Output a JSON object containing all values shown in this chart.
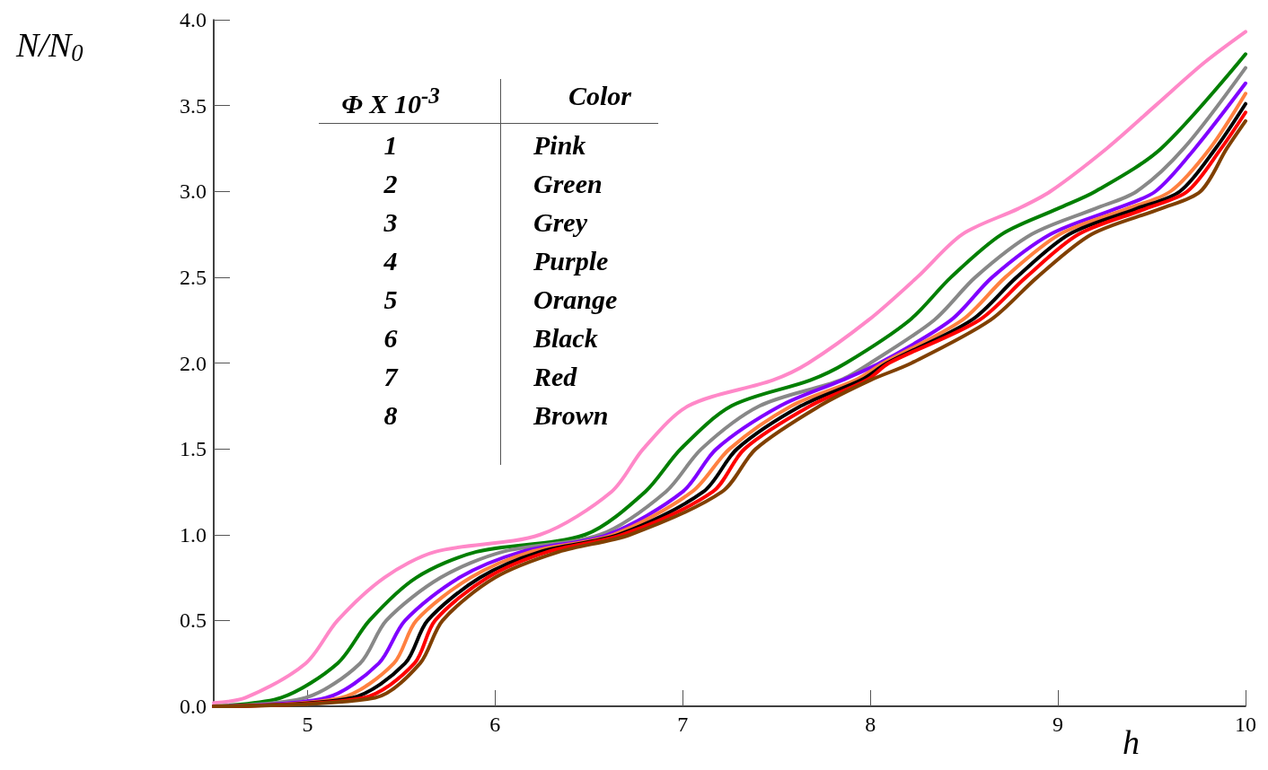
{
  "chart_data": {
    "type": "line",
    "xlabel": "h",
    "ylabel": "N/N$_{0}$",
    "xlim": [
      4.5,
      10
    ],
    "xticks": [
      5,
      6,
      7,
      8,
      9,
      10
    ],
    "ylim": [
      0,
      4
    ],
    "yticks": [
      {
        "value": 0,
        "label": "0.0"
      },
      {
        "value": 0.5,
        "label": "0.5"
      },
      {
        "value": 1,
        "label": "1.0"
      },
      {
        "value": 1.5,
        "label": "1.5"
      },
      {
        "value": 2,
        "label": "2.0"
      },
      {
        "value": 2.5,
        "label": "2.5"
      },
      {
        "value": 3,
        "label": "3.0"
      },
      {
        "value": 3.5,
        "label": "3.5"
      },
      {
        "value": 4,
        "label": "4.0"
      }
    ],
    "grid": false,
    "marker": "none",
    "line_style": "solid",
    "annotations": [
      "Φ X 10$^{-3}$",
      "Color",
      "1",
      "Pink",
      "2",
      "Green",
      "3",
      "Grey",
      "4",
      "Purple",
      "5",
      "Orange",
      "6",
      "Black",
      "7",
      "Red",
      "8",
      "Brown"
    ],
    "series": [
      {
        "color": "#ff88c8",
        "x": [
          4.5,
          4.67,
          4.99,
          5.16,
          5.41,
          5.68,
          6.24,
          6.62,
          6.79,
          7.03,
          7.48,
          7.67,
          7.99,
          8.25,
          8.49,
          8.79,
          8.96,
          9.26,
          9.52,
          9.78,
          10
        ],
        "values": [
          0.02,
          0.05,
          0.25,
          0.5,
          0.75,
          0.9,
          1.0,
          1.25,
          1.5,
          1.75,
          1.9,
          2.0,
          2.25,
          2.5,
          2.75,
          2.9,
          3.0,
          3.25,
          3.5,
          3.75,
          3.93
        ]
      },
      {
        "color": "#007f00",
        "x": [
          4.5,
          4.86,
          5.16,
          5.33,
          5.58,
          5.9,
          6.48,
          6.8,
          6.99,
          7.26,
          7.68,
          7.87,
          8.21,
          8.43,
          8.7,
          9.0,
          9.2,
          9.55,
          10
        ],
        "values": [
          0,
          0.05,
          0.25,
          0.5,
          0.75,
          0.9,
          1.0,
          1.25,
          1.5,
          1.75,
          1.9,
          2.0,
          2.25,
          2.5,
          2.75,
          2.9,
          3.0,
          3.25,
          3.8
        ]
      },
      {
        "color": "#888888",
        "x": [
          4.5,
          4.99,
          5.28,
          5.42,
          5.71,
          6.04,
          6.56,
          6.91,
          7.1,
          7.41,
          7.84,
          8.0,
          8.34,
          8.56,
          8.86,
          9.2,
          9.42,
          9.67,
          10
        ],
        "values": [
          0,
          0.05,
          0.25,
          0.5,
          0.75,
          0.9,
          1.0,
          1.25,
          1.5,
          1.75,
          1.9,
          2.0,
          2.25,
          2.5,
          2.75,
          2.9,
          3.0,
          3.25,
          3.72
        ]
      },
      {
        "color": "#8000ff",
        "x": [
          4.5,
          5.1,
          5.38,
          5.52,
          5.81,
          6.14,
          6.6,
          7.0,
          7.18,
          7.52,
          7.85,
          8.05,
          8.43,
          8.65,
          8.96,
          9.31,
          9.52,
          9.73,
          10
        ],
        "values": [
          0,
          0.05,
          0.25,
          0.5,
          0.75,
          0.9,
          1.0,
          1.25,
          1.5,
          1.75,
          1.9,
          2.0,
          2.25,
          2.5,
          2.75,
          2.9,
          3.0,
          3.25,
          3.63
        ]
      },
      {
        "color": "#ff8040",
        "x": [
          4.5,
          5.18,
          5.46,
          5.58,
          5.87,
          6.19,
          6.63,
          7.05,
          7.25,
          7.58,
          7.92,
          8.07,
          8.49,
          8.72,
          9.01,
          9.37,
          9.6,
          9.81,
          10
        ],
        "values": [
          0,
          0.05,
          0.25,
          0.5,
          0.75,
          0.9,
          1.0,
          1.25,
          1.5,
          1.75,
          1.9,
          2.0,
          2.25,
          2.5,
          2.75,
          2.9,
          3.0,
          3.25,
          3.57
        ]
      },
      {
        "color": "#000000",
        "x": [
          4.5,
          5.24,
          5.52,
          5.64,
          5.92,
          6.24,
          6.66,
          7.11,
          7.29,
          7.63,
          7.95,
          8.09,
          8.54,
          8.78,
          9.06,
          9.42,
          9.65,
          9.84,
          10
        ],
        "values": [
          0,
          0.05,
          0.25,
          0.5,
          0.75,
          0.9,
          1.0,
          1.25,
          1.5,
          1.75,
          1.9,
          2.0,
          2.25,
          2.5,
          2.75,
          2.9,
          3.0,
          3.25,
          3.51
        ]
      },
      {
        "color": "#ff0000",
        "x": [
          4.5,
          5.3,
          5.57,
          5.68,
          5.96,
          6.28,
          6.68,
          7.16,
          7.33,
          7.68,
          7.98,
          8.1,
          8.58,
          8.83,
          9.11,
          9.47,
          9.69,
          9.87,
          10
        ],
        "values": [
          0,
          0.05,
          0.25,
          0.5,
          0.75,
          0.9,
          1.0,
          1.25,
          1.5,
          1.75,
          1.9,
          2.0,
          2.25,
          2.5,
          2.75,
          2.9,
          3.0,
          3.25,
          3.46
        ]
      },
      {
        "color": "#804000",
        "x": [
          4.5,
          5.36,
          5.6,
          5.72,
          6.0,
          6.34,
          6.72,
          7.21,
          7.39,
          7.73,
          8.0,
          8.22,
          8.64,
          8.89,
          9.18,
          9.55,
          9.76,
          9.9,
          10
        ],
        "values": [
          0,
          0.05,
          0.25,
          0.5,
          0.75,
          0.9,
          1.0,
          1.25,
          1.5,
          1.75,
          1.9,
          2.0,
          2.25,
          2.5,
          2.75,
          2.9,
          3.0,
          3.25,
          3.41
        ]
      }
    ]
  }
}
